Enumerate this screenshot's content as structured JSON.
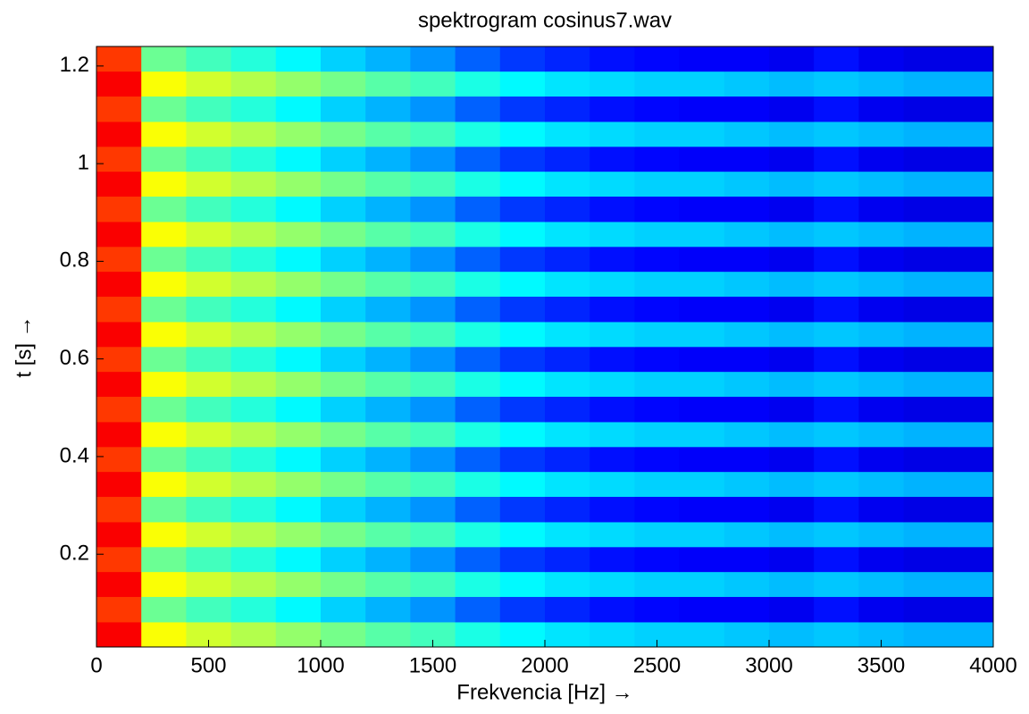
{
  "chart_data": {
    "type": "heatmap",
    "title": "spektrogram cosinus7.wav",
    "xlabel": "Frekvencia [Hz] →",
    "ylabel": "t [s] →",
    "colormap": "jet",
    "clim": [
      0,
      1
    ],
    "xlim": [
      0,
      4000
    ],
    "ylim": [
      0.01,
      1.24
    ],
    "xticks": [
      0,
      500,
      1000,
      1500,
      2000,
      2500,
      3000,
      3500,
      4000
    ],
    "yticks": [
      0.2,
      0.4,
      0.6,
      0.8,
      1,
      1.2
    ],
    "x": [
      100,
      300,
      500,
      700,
      900,
      1100,
      1300,
      1500,
      1700,
      1900,
      2100,
      2300,
      2500,
      2700,
      2900,
      3100,
      3300,
      3500,
      3700,
      3900
    ],
    "y": [
      0.036,
      0.087,
      0.139,
      0.19,
      0.241,
      0.292,
      0.344,
      0.395,
      0.446,
      0.497,
      0.549,
      0.6,
      0.651,
      0.702,
      0.754,
      0.805,
      0.856,
      0.907,
      0.959,
      1.01,
      1.061,
      1.112,
      1.164,
      1.215
    ],
    "z": [
      [
        0.88,
        0.62,
        0.58,
        0.55,
        0.52,
        0.49,
        0.46,
        0.44,
        0.4,
        0.37,
        0.35,
        0.34,
        0.33,
        0.33,
        0.32,
        0.31,
        0.32,
        0.31,
        0.3,
        0.3
      ],
      [
        0.82,
        0.48,
        0.44,
        0.41,
        0.37,
        0.33,
        0.3,
        0.27,
        0.22,
        0.18,
        0.16,
        0.14,
        0.13,
        0.12,
        0.12,
        0.11,
        0.14,
        0.11,
        0.1,
        0.1
      ],
      [
        0.88,
        0.62,
        0.58,
        0.55,
        0.52,
        0.49,
        0.46,
        0.44,
        0.4,
        0.37,
        0.35,
        0.34,
        0.33,
        0.33,
        0.32,
        0.31,
        0.32,
        0.31,
        0.3,
        0.3
      ],
      [
        0.82,
        0.48,
        0.44,
        0.41,
        0.37,
        0.33,
        0.3,
        0.27,
        0.22,
        0.18,
        0.16,
        0.14,
        0.13,
        0.12,
        0.12,
        0.11,
        0.14,
        0.11,
        0.1,
        0.1
      ],
      [
        0.88,
        0.62,
        0.58,
        0.55,
        0.52,
        0.49,
        0.46,
        0.44,
        0.4,
        0.37,
        0.35,
        0.34,
        0.33,
        0.33,
        0.32,
        0.31,
        0.32,
        0.31,
        0.3,
        0.3
      ],
      [
        0.82,
        0.48,
        0.44,
        0.41,
        0.37,
        0.33,
        0.3,
        0.27,
        0.22,
        0.18,
        0.16,
        0.14,
        0.13,
        0.12,
        0.12,
        0.11,
        0.14,
        0.11,
        0.1,
        0.1
      ],
      [
        0.88,
        0.62,
        0.58,
        0.55,
        0.52,
        0.49,
        0.46,
        0.44,
        0.4,
        0.37,
        0.35,
        0.34,
        0.33,
        0.33,
        0.32,
        0.31,
        0.32,
        0.31,
        0.3,
        0.3
      ],
      [
        0.82,
        0.48,
        0.44,
        0.41,
        0.37,
        0.33,
        0.3,
        0.27,
        0.22,
        0.18,
        0.16,
        0.14,
        0.13,
        0.12,
        0.12,
        0.11,
        0.14,
        0.11,
        0.1,
        0.1
      ],
      [
        0.88,
        0.62,
        0.58,
        0.55,
        0.52,
        0.49,
        0.46,
        0.44,
        0.4,
        0.37,
        0.35,
        0.34,
        0.33,
        0.33,
        0.32,
        0.31,
        0.32,
        0.31,
        0.3,
        0.3
      ],
      [
        0.82,
        0.48,
        0.44,
        0.41,
        0.37,
        0.33,
        0.3,
        0.27,
        0.22,
        0.18,
        0.16,
        0.14,
        0.13,
        0.12,
        0.12,
        0.11,
        0.14,
        0.11,
        0.1,
        0.1
      ],
      [
        0.88,
        0.62,
        0.58,
        0.55,
        0.52,
        0.49,
        0.46,
        0.44,
        0.4,
        0.37,
        0.35,
        0.34,
        0.33,
        0.33,
        0.32,
        0.31,
        0.32,
        0.31,
        0.3,
        0.3
      ],
      [
        0.82,
        0.48,
        0.44,
        0.41,
        0.37,
        0.33,
        0.3,
        0.27,
        0.22,
        0.18,
        0.16,
        0.14,
        0.13,
        0.12,
        0.12,
        0.11,
        0.14,
        0.11,
        0.1,
        0.1
      ],
      [
        0.88,
        0.62,
        0.58,
        0.55,
        0.52,
        0.49,
        0.46,
        0.44,
        0.4,
        0.37,
        0.35,
        0.34,
        0.33,
        0.33,
        0.32,
        0.31,
        0.32,
        0.31,
        0.3,
        0.3
      ],
      [
        0.82,
        0.48,
        0.44,
        0.41,
        0.37,
        0.33,
        0.3,
        0.27,
        0.22,
        0.18,
        0.16,
        0.14,
        0.13,
        0.12,
        0.12,
        0.11,
        0.14,
        0.11,
        0.1,
        0.1
      ],
      [
        0.88,
        0.62,
        0.58,
        0.55,
        0.52,
        0.49,
        0.46,
        0.44,
        0.4,
        0.37,
        0.35,
        0.34,
        0.33,
        0.33,
        0.32,
        0.31,
        0.32,
        0.31,
        0.3,
        0.3
      ],
      [
        0.82,
        0.48,
        0.44,
        0.41,
        0.37,
        0.33,
        0.3,
        0.27,
        0.22,
        0.18,
        0.16,
        0.14,
        0.13,
        0.12,
        0.12,
        0.11,
        0.14,
        0.11,
        0.1,
        0.1
      ],
      [
        0.88,
        0.62,
        0.58,
        0.55,
        0.52,
        0.49,
        0.46,
        0.44,
        0.4,
        0.37,
        0.35,
        0.34,
        0.33,
        0.33,
        0.32,
        0.31,
        0.32,
        0.31,
        0.3,
        0.3
      ],
      [
        0.82,
        0.48,
        0.44,
        0.41,
        0.37,
        0.33,
        0.3,
        0.27,
        0.22,
        0.18,
        0.16,
        0.14,
        0.13,
        0.12,
        0.12,
        0.11,
        0.14,
        0.11,
        0.1,
        0.1
      ],
      [
        0.88,
        0.62,
        0.58,
        0.55,
        0.52,
        0.49,
        0.46,
        0.44,
        0.4,
        0.37,
        0.35,
        0.34,
        0.33,
        0.33,
        0.32,
        0.31,
        0.32,
        0.31,
        0.3,
        0.3
      ],
      [
        0.82,
        0.48,
        0.44,
        0.41,
        0.37,
        0.33,
        0.3,
        0.27,
        0.22,
        0.18,
        0.16,
        0.14,
        0.13,
        0.12,
        0.12,
        0.11,
        0.14,
        0.11,
        0.1,
        0.1
      ],
      [
        0.88,
        0.62,
        0.58,
        0.55,
        0.52,
        0.49,
        0.46,
        0.44,
        0.4,
        0.37,
        0.35,
        0.34,
        0.33,
        0.33,
        0.32,
        0.31,
        0.32,
        0.31,
        0.3,
        0.3
      ],
      [
        0.82,
        0.48,
        0.44,
        0.41,
        0.37,
        0.33,
        0.3,
        0.27,
        0.22,
        0.18,
        0.16,
        0.14,
        0.13,
        0.12,
        0.12,
        0.11,
        0.14,
        0.11,
        0.1,
        0.1
      ],
      [
        0.88,
        0.62,
        0.58,
        0.55,
        0.52,
        0.49,
        0.46,
        0.44,
        0.4,
        0.37,
        0.35,
        0.34,
        0.33,
        0.33,
        0.32,
        0.31,
        0.32,
        0.31,
        0.3,
        0.3
      ],
      [
        0.82,
        0.48,
        0.44,
        0.41,
        0.37,
        0.33,
        0.3,
        0.27,
        0.22,
        0.18,
        0.16,
        0.14,
        0.13,
        0.12,
        0.12,
        0.11,
        0.14,
        0.11,
        0.1,
        0.1
      ]
    ]
  }
}
